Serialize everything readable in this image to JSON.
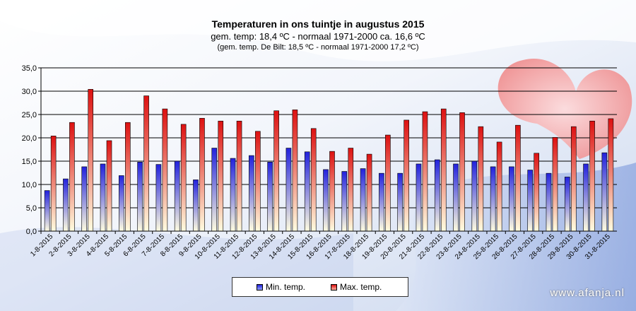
{
  "title": "Temperaturen  in ons tuintje in augustus 2015",
  "subtitle": "gem.  temp: 18,4 ºC - normaal  1971-2000  ca. 16,6 ºC",
  "subtitle2": "(gem. temp. De Bilt: 18,5 ºC - normaal 1971-2000 17,2 ºC)",
  "watermark": "www.afanja.nl",
  "legend": {
    "min_label": "Min. temp.",
    "max_label": "Max. temp."
  },
  "colors": {
    "min": "#2222dd",
    "max": "#dd1111",
    "light": "#fffde0",
    "grid": "#000000"
  },
  "chart_data": {
    "type": "bar",
    "title": "Temperaturen  in ons tuintje in augustus 2015",
    "ylim": [
      0,
      35
    ],
    "yticks": [
      "0,0",
      "5,0",
      "10,0",
      "15,0",
      "20,0",
      "25,0",
      "30,0",
      "35,0"
    ],
    "grid": true,
    "legend_position": "bottom",
    "categories": [
      "1-8-2015",
      "2-8-2015",
      "3-8-2015",
      "4-8-2015",
      "5-8-2015",
      "6-8-2015",
      "7-8-2015",
      "8-8-2015",
      "9-8-2015",
      "10-8-2015",
      "11-8-2015",
      "12-8-2015",
      "13-8-2015",
      "14-8-2015",
      "15-8-2015",
      "16-8-2015",
      "17-8-2015",
      "18-8-2015",
      "19-8-2015",
      "20-8-2015",
      "21-8-2015",
      "22-8-2015",
      "23-8-2015",
      "24-8-2015",
      "25-8-2015",
      "26-8-2015",
      "27-8-2015",
      "28-8-2015",
      "29-8-2015",
      "30-8-2015",
      "31-8-2015"
    ],
    "series": [
      {
        "name": "Min. temp.",
        "values": [
          8.7,
          11.2,
          13.8,
          14.4,
          11.9,
          14.8,
          14.3,
          15.0,
          11.0,
          17.8,
          15.6,
          16.2,
          14.8,
          17.8,
          17.0,
          13.2,
          12.8,
          13.4,
          12.4,
          12.4,
          14.4,
          15.3,
          14.4,
          15.0,
          13.8,
          13.8,
          13.1,
          12.4,
          11.6,
          14.4,
          16.8
        ]
      },
      {
        "name": "Max. temp.",
        "values": [
          20.4,
          23.3,
          30.4,
          19.4,
          23.3,
          29.0,
          26.2,
          22.9,
          24.2,
          23.6,
          23.6,
          21.4,
          25.8,
          26.0,
          22.0,
          17.1,
          17.8,
          16.5,
          20.6,
          23.8,
          25.6,
          26.2,
          25.4,
          22.4,
          19.1,
          22.7,
          16.7,
          20.1,
          22.4,
          23.6,
          24.1
        ]
      }
    ]
  }
}
